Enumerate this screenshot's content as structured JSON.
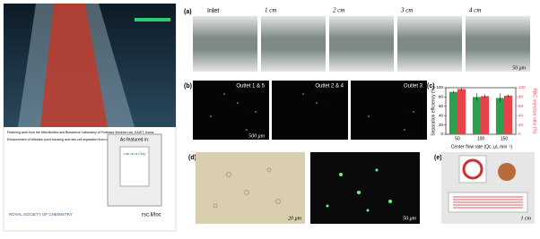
{
  "cover": {
    "featuring": "Featuring work from the Microfluidics and Bioscience Laboratory of Professor Wonhee Lee, KAIST, Korea.",
    "article": "Enhancement of inflection point focusing and new cell separation from unlabeled whole blood",
    "featured": "As featured in:",
    "journal": "Lab on a Chip",
    "society": "ROYAL SOCIETY OF CHEMISTRY",
    "url": "rsc.li/loc"
  },
  "panels": {
    "a": {
      "label": "(a)",
      "positions": [
        "Inlet",
        "1 cm",
        "2 cm",
        "3 cm",
        "4 cm"
      ],
      "scale": "50 μm"
    },
    "b": {
      "label": "(b)",
      "outlets": [
        "Outlet 1 & 5",
        "Outlet 2 & 4",
        "Outlet 3"
      ],
      "scale": "500 μm"
    },
    "d": {
      "label": "(d)",
      "scales": [
        "20 μm",
        "50 μm"
      ]
    },
    "e": {
      "label": "(e)",
      "scale": "1 cm"
    }
  },
  "chart_data": {
    "type": "bar",
    "label": "(c)",
    "x_label": "Center flow rate (Qc, μL min⁻¹)",
    "y_label": "Separation efficiency (%)",
    "y2_label": "RBC rejection ratio (%)",
    "categories": [
      "50",
      "100",
      "150"
    ],
    "series": [
      {
        "color": "#2e9e4f",
        "values": [
          91,
          80,
          78
        ],
        "errors": [
          3,
          8,
          10
        ]
      },
      {
        "color": "#e8434a",
        "axis": "y2",
        "values": [
          97,
          82,
          83
        ],
        "errors": [
          2,
          4,
          3
        ]
      }
    ],
    "ylim": [
      0,
      100
    ],
    "yticks": [
      0,
      20,
      40,
      60,
      80,
      100
    ],
    "y2lim": [
      0,
      100
    ],
    "y2ticks": [
      0,
      20,
      40,
      60,
      80,
      100
    ]
  }
}
